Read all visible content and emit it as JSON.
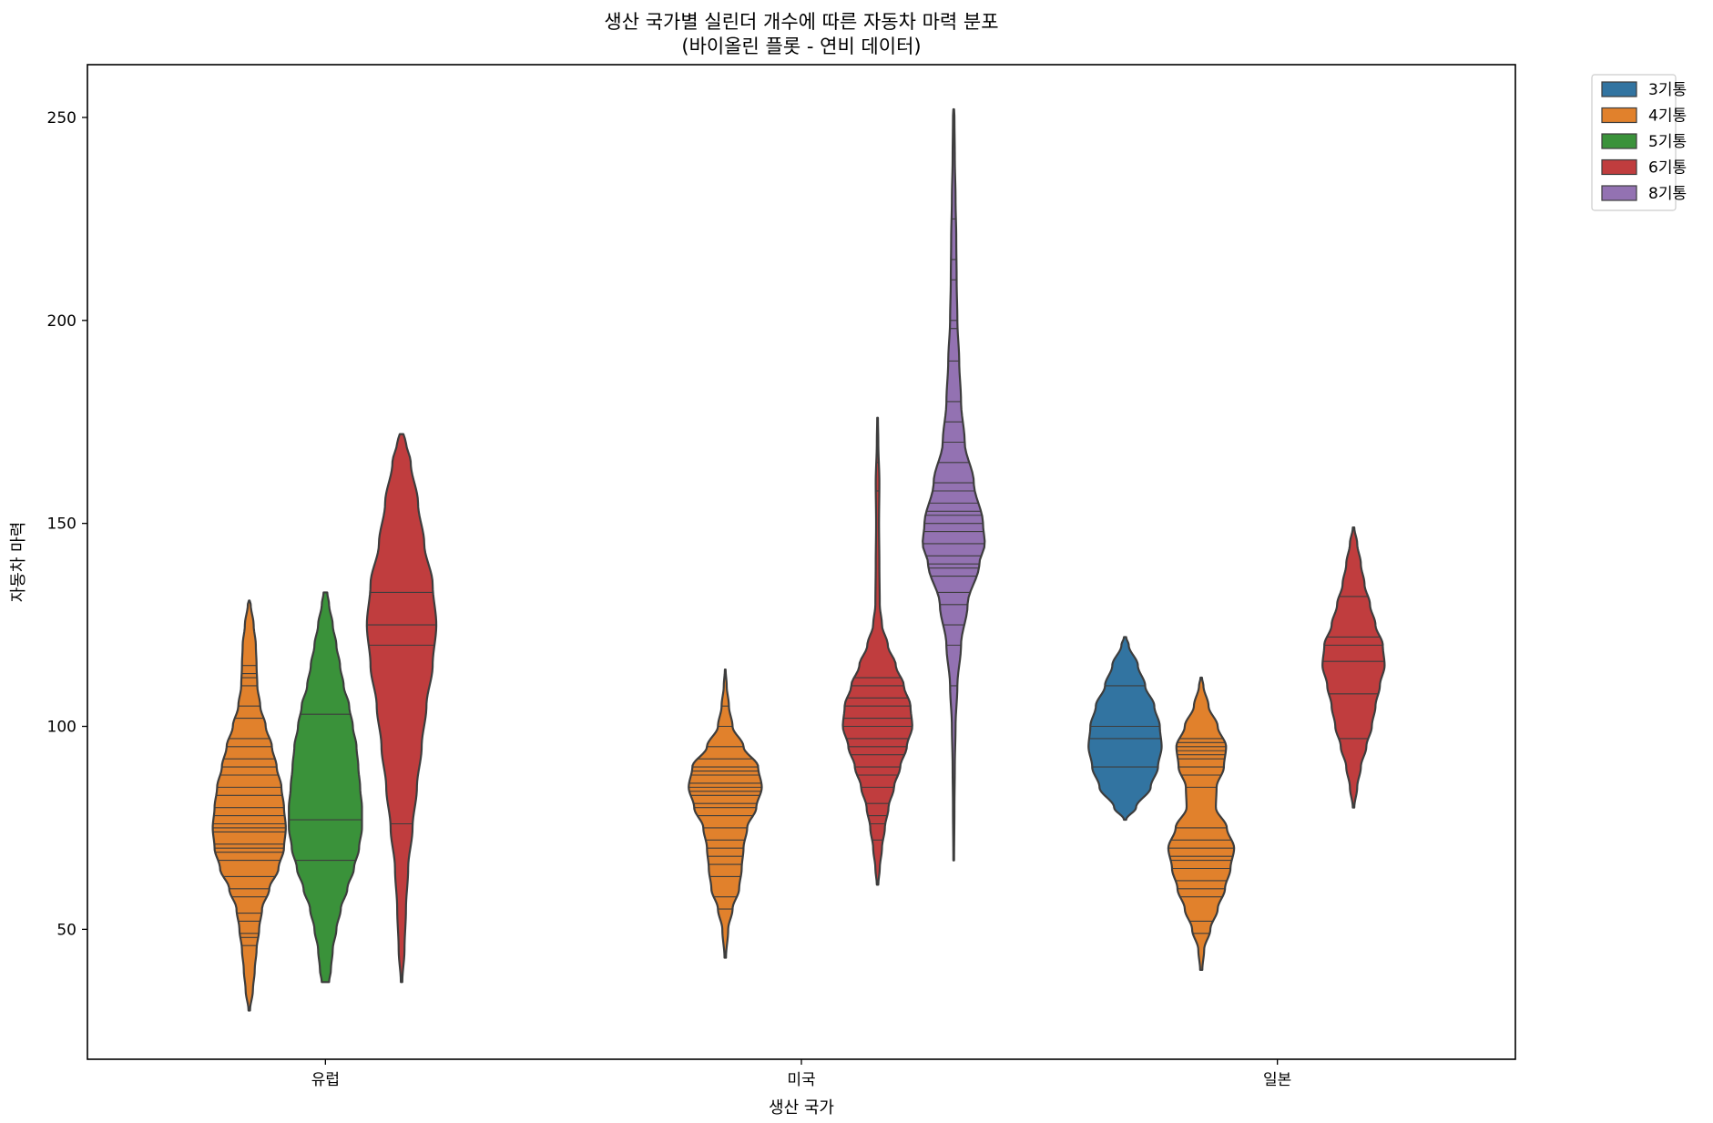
{
  "chart_data": {
    "type": "violin",
    "title": "생산 국가별 실린더 개수에 따른 자동차 마력 분포",
    "subtitle": "(바이올린 플롯 - 연비 데이터)",
    "xlabel": "생산 국가",
    "ylabel": "자동차 마력",
    "categories": [
      "유럽",
      "미국",
      "일본"
    ],
    "ylim": [
      18,
      263
    ],
    "yticks": [
      50,
      100,
      150,
      200,
      250
    ],
    "grid": false,
    "legend_position": "outside-top-right",
    "inner": "stick",
    "series": [
      {
        "name": "3기통",
        "color": "#3274a1"
      },
      {
        "name": "4기통",
        "color": "#e1812c"
      },
      {
        "name": "5기통",
        "color": "#3a923a"
      },
      {
        "name": "6기통",
        "color": "#c03d3e"
      },
      {
        "name": "8기통",
        "color": "#9372b2"
      }
    ],
    "violins": [
      {
        "category": "유럽",
        "series": "4기통",
        "range": [
          30,
          131
        ],
        "profile": [
          [
            30,
            0.02
          ],
          [
            35,
            0.1
          ],
          [
            40,
            0.15
          ],
          [
            45,
            0.2
          ],
          [
            50,
            0.27
          ],
          [
            55,
            0.35
          ],
          [
            60,
            0.55
          ],
          [
            65,
            0.8
          ],
          [
            70,
            0.95
          ],
          [
            75,
            1.0
          ],
          [
            80,
            0.95
          ],
          [
            85,
            0.88
          ],
          [
            90,
            0.75
          ],
          [
            95,
            0.62
          ],
          [
            100,
            0.45
          ],
          [
            105,
            0.3
          ],
          [
            110,
            0.22
          ],
          [
            115,
            0.2
          ],
          [
            120,
            0.18
          ],
          [
            125,
            0.12
          ],
          [
            130,
            0.04
          ],
          [
            131,
            0.01
          ]
        ],
        "sticks": [
          46,
          48,
          49,
          52,
          54,
          58,
          60,
          63,
          67,
          69,
          70,
          71,
          74,
          75,
          76,
          78,
          80,
          83,
          85,
          88,
          90,
          92,
          95,
          97,
          102,
          105,
          110,
          112,
          113,
          115
        ]
      },
      {
        "category": "유럽",
        "series": "5기통",
        "range": [
          37,
          133
        ],
        "profile": [
          [
            37,
            0.1
          ],
          [
            40,
            0.15
          ],
          [
            45,
            0.2
          ],
          [
            50,
            0.3
          ],
          [
            55,
            0.42
          ],
          [
            60,
            0.6
          ],
          [
            65,
            0.78
          ],
          [
            70,
            0.92
          ],
          [
            75,
            1.0
          ],
          [
            80,
            1.0
          ],
          [
            85,
            0.95
          ],
          [
            90,
            0.9
          ],
          [
            95,
            0.85
          ],
          [
            100,
            0.75
          ],
          [
            105,
            0.65
          ],
          [
            110,
            0.5
          ],
          [
            115,
            0.4
          ],
          [
            120,
            0.3
          ],
          [
            125,
            0.2
          ],
          [
            130,
            0.1
          ],
          [
            133,
            0.05
          ]
        ],
        "sticks": [
          67,
          77,
          103
        ]
      },
      {
        "category": "유럽",
        "series": "6기통",
        "range": [
          37,
          172
        ],
        "profile": [
          [
            37,
            0.02
          ],
          [
            45,
            0.08
          ],
          [
            55,
            0.12
          ],
          [
            65,
            0.18
          ],
          [
            75,
            0.3
          ],
          [
            85,
            0.42
          ],
          [
            95,
            0.55
          ],
          [
            105,
            0.68
          ],
          [
            115,
            0.85
          ],
          [
            125,
            0.95
          ],
          [
            135,
            0.85
          ],
          [
            145,
            0.62
          ],
          [
            155,
            0.45
          ],
          [
            165,
            0.25
          ],
          [
            170,
            0.12
          ],
          [
            172,
            0.05
          ]
        ],
        "sticks": [
          76,
          120,
          125,
          133
        ]
      },
      {
        "category": "미국",
        "series": "4기통",
        "range": [
          43,
          114
        ],
        "profile": [
          [
            43,
            0.02
          ],
          [
            50,
            0.08
          ],
          [
            55,
            0.2
          ],
          [
            60,
            0.38
          ],
          [
            65,
            0.45
          ],
          [
            70,
            0.5
          ],
          [
            75,
            0.6
          ],
          [
            80,
            0.85
          ],
          [
            85,
            1.0
          ],
          [
            90,
            0.9
          ],
          [
            95,
            0.5
          ],
          [
            100,
            0.2
          ],
          [
            105,
            0.1
          ],
          [
            110,
            0.04
          ],
          [
            114,
            0.01
          ]
        ],
        "sticks": [
          55,
          58,
          63,
          66,
          68,
          70,
          72,
          75,
          78,
          80,
          81,
          83,
          84,
          85,
          86,
          88,
          89,
          90,
          92,
          95,
          100,
          105
        ]
      },
      {
        "category": "미국",
        "series": "6기통",
        "range": [
          61,
          176
        ],
        "profile": [
          [
            61,
            0.02
          ],
          [
            65,
            0.06
          ],
          [
            70,
            0.12
          ],
          [
            75,
            0.2
          ],
          [
            80,
            0.3
          ],
          [
            85,
            0.45
          ],
          [
            90,
            0.62
          ],
          [
            95,
            0.8
          ],
          [
            100,
            0.95
          ],
          [
            105,
            0.9
          ],
          [
            110,
            0.72
          ],
          [
            115,
            0.5
          ],
          [
            120,
            0.28
          ],
          [
            125,
            0.12
          ],
          [
            130,
            0.06
          ],
          [
            140,
            0.05
          ],
          [
            150,
            0.04
          ],
          [
            160,
            0.05
          ],
          [
            170,
            0.02
          ],
          [
            176,
            0.01
          ]
        ],
        "sticks": [
          72,
          76,
          78,
          81,
          85,
          88,
          90,
          93,
          95,
          97,
          100,
          102,
          105,
          107,
          110,
          112,
          158,
          165
        ]
      },
      {
        "category": "미국",
        "series": "8기통",
        "range": [
          67,
          252
        ],
        "profile": [
          [
            67,
            0.01
          ],
          [
            80,
            0.02
          ],
          [
            90,
            0.03
          ],
          [
            100,
            0.05
          ],
          [
            110,
            0.1
          ],
          [
            120,
            0.2
          ],
          [
            130,
            0.38
          ],
          [
            140,
            0.7
          ],
          [
            145,
            0.85
          ],
          [
            150,
            0.8
          ],
          [
            160,
            0.55
          ],
          [
            170,
            0.3
          ],
          [
            180,
            0.2
          ],
          [
            190,
            0.15
          ],
          [
            200,
            0.1
          ],
          [
            210,
            0.08
          ],
          [
            220,
            0.07
          ],
          [
            230,
            0.05
          ],
          [
            240,
            0.03
          ],
          [
            250,
            0.02
          ],
          [
            252,
            0.01
          ]
        ],
        "sticks": [
          110,
          120,
          125,
          130,
          133,
          137,
          139,
          140,
          142,
          145,
          148,
          150,
          152,
          153,
          155,
          158,
          160,
          165,
          170,
          175,
          180,
          190,
          198,
          200,
          210,
          215,
          225
        ]
      },
      {
        "category": "일본",
        "series": "3기통",
        "range": [
          77,
          122
        ],
        "profile": [
          [
            77,
            0.03
          ],
          [
            80,
            0.3
          ],
          [
            85,
            0.7
          ],
          [
            90,
            0.9
          ],
          [
            95,
            1.0
          ],
          [
            100,
            0.95
          ],
          [
            105,
            0.8
          ],
          [
            110,
            0.55
          ],
          [
            115,
            0.35
          ],
          [
            120,
            0.1
          ],
          [
            122,
            0.03
          ]
        ],
        "sticks": [
          90,
          97,
          100,
          110
        ]
      },
      {
        "category": "일본",
        "series": "4기통",
        "range": [
          40,
          112
        ],
        "profile": [
          [
            40,
            0.03
          ],
          [
            45,
            0.08
          ],
          [
            50,
            0.25
          ],
          [
            55,
            0.45
          ],
          [
            60,
            0.65
          ],
          [
            65,
            0.8
          ],
          [
            70,
            0.9
          ],
          [
            75,
            0.7
          ],
          [
            80,
            0.4
          ],
          [
            85,
            0.42
          ],
          [
            90,
            0.62
          ],
          [
            95,
            0.68
          ],
          [
            100,
            0.45
          ],
          [
            105,
            0.2
          ],
          [
            110,
            0.06
          ],
          [
            112,
            0.02
          ]
        ],
        "sticks": [
          49,
          52,
          58,
          60,
          62,
          65,
          67,
          68,
          70,
          72,
          75,
          85,
          88,
          90,
          92,
          93,
          94,
          95,
          96,
          97
        ]
      },
      {
        "category": "일본",
        "series": "6기통",
        "range": [
          80,
          149
        ],
        "profile": [
          [
            80,
            0.02
          ],
          [
            85,
            0.1
          ],
          [
            90,
            0.2
          ],
          [
            95,
            0.35
          ],
          [
            100,
            0.5
          ],
          [
            105,
            0.6
          ],
          [
            110,
            0.72
          ],
          [
            115,
            0.85
          ],
          [
            120,
            0.8
          ],
          [
            125,
            0.6
          ],
          [
            130,
            0.45
          ],
          [
            135,
            0.3
          ],
          [
            140,
            0.2
          ],
          [
            145,
            0.1
          ],
          [
            149,
            0.02
          ]
        ],
        "sticks": [
          97,
          108,
          116,
          120,
          122,
          132
        ]
      }
    ]
  }
}
